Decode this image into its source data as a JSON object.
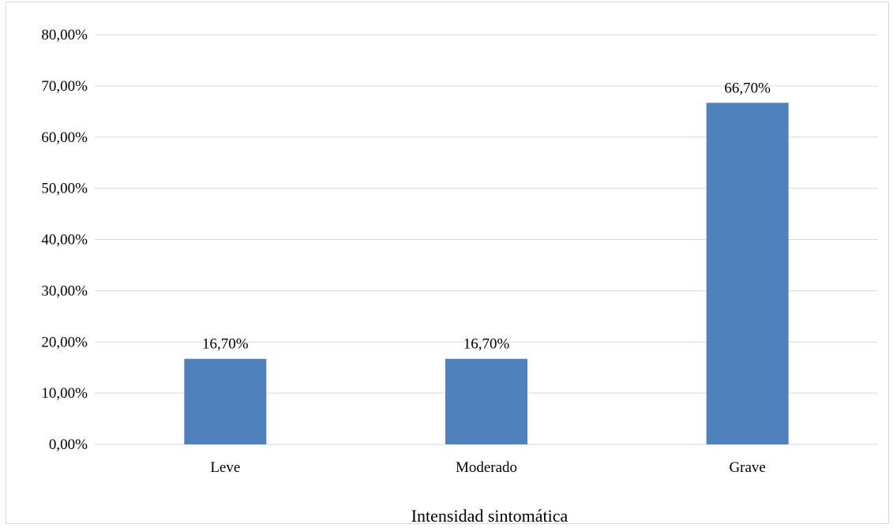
{
  "chart_data": {
    "type": "bar",
    "title": "",
    "xlabel": "Intensidad sintomática",
    "ylabel": "",
    "categories": [
      "Leve",
      "Moderado",
      "Grave"
    ],
    "values": [
      16.7,
      16.7,
      66.7
    ],
    "value_labels": [
      "16,70%",
      "16,70%",
      "66,70%"
    ],
    "ylim": [
      0,
      80
    ],
    "yticks": [
      0,
      10,
      20,
      30,
      40,
      50,
      60,
      70,
      80
    ],
    "ytick_labels": [
      "0,00%",
      "10,00%",
      "20,00%",
      "30,00%",
      "40,00%",
      "50,00%",
      "60,00%",
      "70,00%",
      "80,00%"
    ],
    "grid": true,
    "legend": "none",
    "bar_color": "#4f81bd",
    "grid_color": "#d9d9d9"
  }
}
